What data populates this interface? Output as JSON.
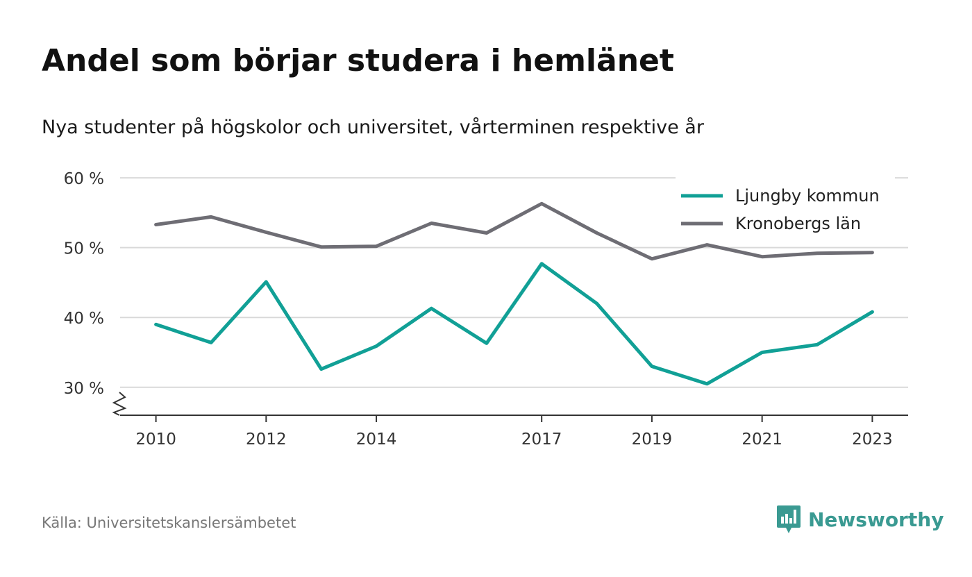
{
  "header": {
    "title": "Andel som börjar studera i hemlänet",
    "subtitle": "Nya studenter på högskolor och universitet, vårterminen respektive år"
  },
  "footer": {
    "source": "Källa: Universitetskanslersämbetet",
    "brand": "Newsworthy",
    "brand_icon": "newsworthy-logo-icon"
  },
  "chart_data": {
    "type": "line",
    "x": [
      2010,
      2011,
      2012,
      2013,
      2014,
      2015,
      2016,
      2017,
      2018,
      2019,
      2020,
      2021,
      2022,
      2023
    ],
    "x_tick_labels": [
      "2010",
      "2012",
      "2014",
      "2017",
      "2019",
      "2021",
      "2023"
    ],
    "y_ticks": [
      30,
      40,
      50,
      60
    ],
    "y_tick_labels": [
      "30 %",
      "40 %",
      "50 %",
      "60 %"
    ],
    "ylim": [
      26,
      62
    ],
    "y_axis_break": true,
    "grid": true,
    "legend_position": "top-right",
    "series": [
      {
        "name": "Ljungby kommun",
        "color": "#11a096",
        "values": [
          39.0,
          36.4,
          45.1,
          32.6,
          35.9,
          41.3,
          36.3,
          47.7,
          42.0,
          33.0,
          30.5,
          35.0,
          36.1,
          40.8
        ]
      },
      {
        "name": "Kronobergs län",
        "color": "#6e6d74",
        "values": [
          53.3,
          54.4,
          52.2,
          50.1,
          50.2,
          53.5,
          52.1,
          56.3,
          52.1,
          48.4,
          50.4,
          48.7,
          49.2,
          49.3
        ]
      }
    ]
  }
}
